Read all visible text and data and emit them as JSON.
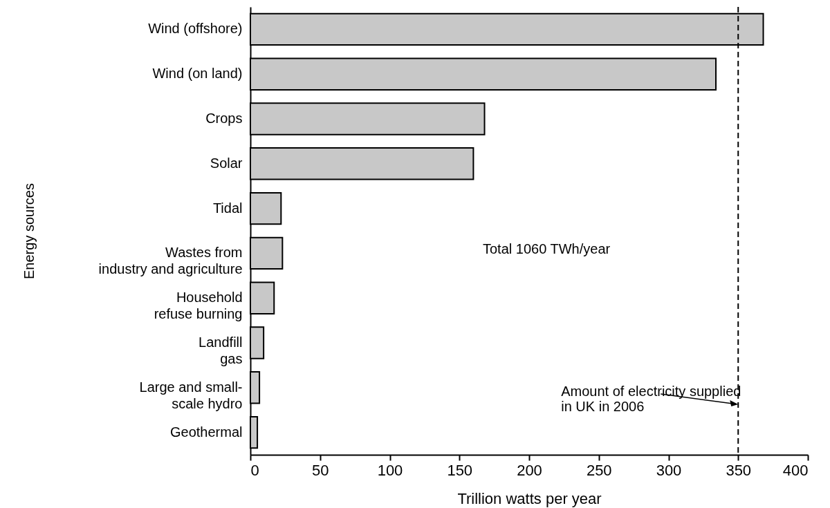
{
  "chart_data": {
    "type": "bar",
    "orientation": "horizontal",
    "categories": [
      "Wind (offshore)",
      "Wind (on land)",
      "Crops",
      "Solar",
      "Tidal",
      "Wastes from\nindustry and agriculture",
      "Household\nrefuse burning",
      "Landfill\ngas",
      "Large and small-\nscale hydro",
      "Geothermal"
    ],
    "values": [
      368,
      334,
      168,
      160,
      22,
      23,
      17,
      9.5,
      6.5,
      5
    ],
    "color": "#c8c8c8",
    "xlim": [
      0,
      400
    ],
    "xticks": [
      0,
      50,
      100,
      150,
      200,
      250,
      300,
      350,
      400
    ],
    "xlabel": "Trillion watts per year",
    "ylabel": "Energy sources",
    "grid": false,
    "annotations": [
      "Total 1060 TWh/year"
    ],
    "ref_lines": [
      {
        "axis": "x",
        "value": 350,
        "label": "Amount of electricity supplied\nin UK in 2006",
        "line_style": "dashed",
        "color": "#000000"
      }
    ]
  }
}
